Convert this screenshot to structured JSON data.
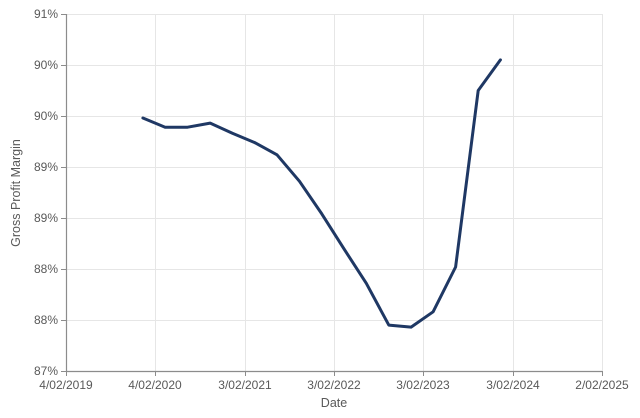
{
  "chart_data": {
    "type": "line",
    "title": "",
    "xlabel": "Date",
    "ylabel": "Gross Profit Margin",
    "x_tick_labels": [
      "4/02/2019",
      "4/02/2020",
      "3/02/2021",
      "3/02/2022",
      "3/02/2023",
      "3/02/2024",
      "2/02/2025"
    ],
    "y_tick_labels": [
      "91%",
      "90%",
      "90%",
      "89%",
      "89%",
      "88%",
      "88%",
      "87%"
    ],
    "ylim": [
      87,
      90.5
    ],
    "y_step": 0.5,
    "y_tick_note": "ticks every 0.5% displayed rounded to whole percent",
    "grid": true,
    "legend": "none",
    "series": [
      {
        "name": "Gross Profit Margin",
        "color": "#1f3864",
        "points": [
          {
            "date": "12/2019",
            "value": 89.48
          },
          {
            "date": "3/2020",
            "value": 89.39
          },
          {
            "date": "6/2020",
            "value": 89.39
          },
          {
            "date": "9/2020",
            "value": 89.43
          },
          {
            "date": "12/2020",
            "value": 89.33
          },
          {
            "date": "3/2021",
            "value": 89.24
          },
          {
            "date": "6/2021",
            "value": 89.12
          },
          {
            "date": "9/2021",
            "value": 88.86
          },
          {
            "date": "12/2021",
            "value": 88.54
          },
          {
            "date": "3/2022",
            "value": 88.2
          },
          {
            "date": "6/2022",
            "value": 87.86
          },
          {
            "date": "9/2022",
            "value": 87.45
          },
          {
            "date": "12/2022",
            "value": 87.43
          },
          {
            "date": "3/2023",
            "value": 87.58
          },
          {
            "date": "6/2023",
            "value": 88.02
          },
          {
            "date": "9/2023",
            "value": 89.75
          },
          {
            "date": "12/2023",
            "value": 90.05
          }
        ]
      }
    ]
  },
  "colors": {
    "line": "#1f3864",
    "tick_text": "#595959",
    "axis": "#8c8c8c",
    "gridline": "#e6e6e6",
    "background": "#ffffff"
  }
}
